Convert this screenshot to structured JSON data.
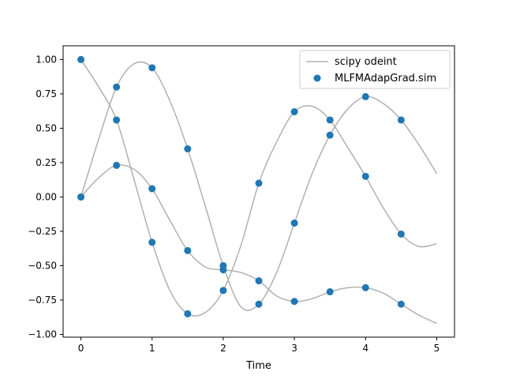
{
  "chart_data": {
    "type": "line",
    "xlabel": "Time",
    "ylabel": "",
    "title": "",
    "xlim": [
      -0.25,
      5.25
    ],
    "ylim": [
      -1.02,
      1.1
    ],
    "xticks": [
      0,
      1,
      2,
      3,
      4,
      5
    ],
    "xtick_labels": [
      "0",
      "1",
      "2",
      "3",
      "4",
      "5"
    ],
    "yticks": [
      -1.0,
      -0.75,
      -0.5,
      -0.25,
      0.0,
      0.25,
      0.5,
      0.75,
      1.0
    ],
    "ytick_labels": [
      "−1.00",
      "−0.75",
      "−0.50",
      "−0.25",
      "0.00",
      "0.25",
      "0.50",
      "0.75",
      "1.00"
    ],
    "grid": false,
    "legend_position": "top-right",
    "colors": {
      "line": "#b0b0b0",
      "marker": "#1f77b4",
      "axes": "#000000"
    },
    "series": [
      {
        "name": "scipy odeint",
        "style": "line",
        "curves": [
          {
            "x": [
              0,
              0.25,
              0.5,
              0.75,
              1.0,
              1.25,
              1.5,
              1.75,
              2.0,
              2.25,
              2.5,
              2.75,
              3.0,
              3.25,
              3.5,
              3.75,
              4.0,
              4.25,
              4.5,
              4.75,
              5.0
            ],
            "y": [
              1.0,
              0.8,
              0.56,
              0.12,
              -0.33,
              -0.68,
              -0.85,
              -0.84,
              -0.68,
              -0.35,
              0.1,
              0.4,
              0.62,
              0.66,
              0.56,
              0.36,
              0.15,
              -0.08,
              -0.27,
              -0.36,
              -0.34
            ]
          },
          {
            "x": [
              0,
              0.25,
              0.5,
              0.75,
              1.0,
              1.25,
              1.5,
              1.75,
              2.0,
              2.25,
              2.5,
              2.75,
              3.0,
              3.25,
              3.5,
              3.75,
              4.0,
              4.25,
              4.5,
              4.75,
              5.0
            ],
            "y": [
              0.0,
              0.42,
              0.8,
              0.97,
              0.94,
              0.7,
              0.35,
              -0.07,
              -0.5,
              -0.8,
              -0.78,
              -0.55,
              -0.19,
              0.17,
              0.45,
              0.64,
              0.73,
              0.68,
              0.56,
              0.38,
              0.17
            ]
          },
          {
            "x": [
              0,
              0.25,
              0.5,
              0.75,
              1.0,
              1.25,
              1.5,
              1.75,
              2.0,
              2.25,
              2.5,
              2.75,
              3.0,
              3.25,
              3.5,
              3.75,
              4.0,
              4.25,
              4.5,
              4.75,
              5.0
            ],
            "y": [
              0.0,
              0.14,
              0.23,
              0.2,
              0.06,
              -0.17,
              -0.39,
              -0.51,
              -0.53,
              -0.55,
              -0.61,
              -0.72,
              -0.76,
              -0.74,
              -0.69,
              -0.66,
              -0.66,
              -0.7,
              -0.78,
              -0.86,
              -0.92
            ]
          }
        ]
      },
      {
        "name": "MLFMAdapGrad.sim",
        "style": "markers",
        "curves": [
          {
            "x": [
              0,
              0.5,
              1.0,
              1.5,
              2.0,
              2.5,
              3.0,
              3.5,
              4.0,
              4.5
            ],
            "y": [
              1.0,
              0.56,
              -0.33,
              -0.85,
              -0.68,
              0.1,
              0.62,
              0.56,
              0.15,
              -0.27
            ]
          },
          {
            "x": [
              0,
              0.5,
              1.0,
              1.5,
              2.0,
              2.5,
              3.0,
              3.5,
              4.0,
              4.5
            ],
            "y": [
              0.0,
              0.8,
              0.94,
              0.35,
              -0.5,
              -0.78,
              -0.19,
              0.45,
              0.73,
              0.56
            ]
          },
          {
            "x": [
              0,
              0.5,
              1.0,
              1.5,
              2.0,
              2.5,
              3.0,
              3.5,
              4.0,
              4.5
            ],
            "y": [
              0.0,
              0.23,
              0.06,
              -0.39,
              -0.53,
              -0.61,
              -0.76,
              -0.69,
              -0.66,
              -0.78
            ]
          }
        ]
      }
    ]
  }
}
